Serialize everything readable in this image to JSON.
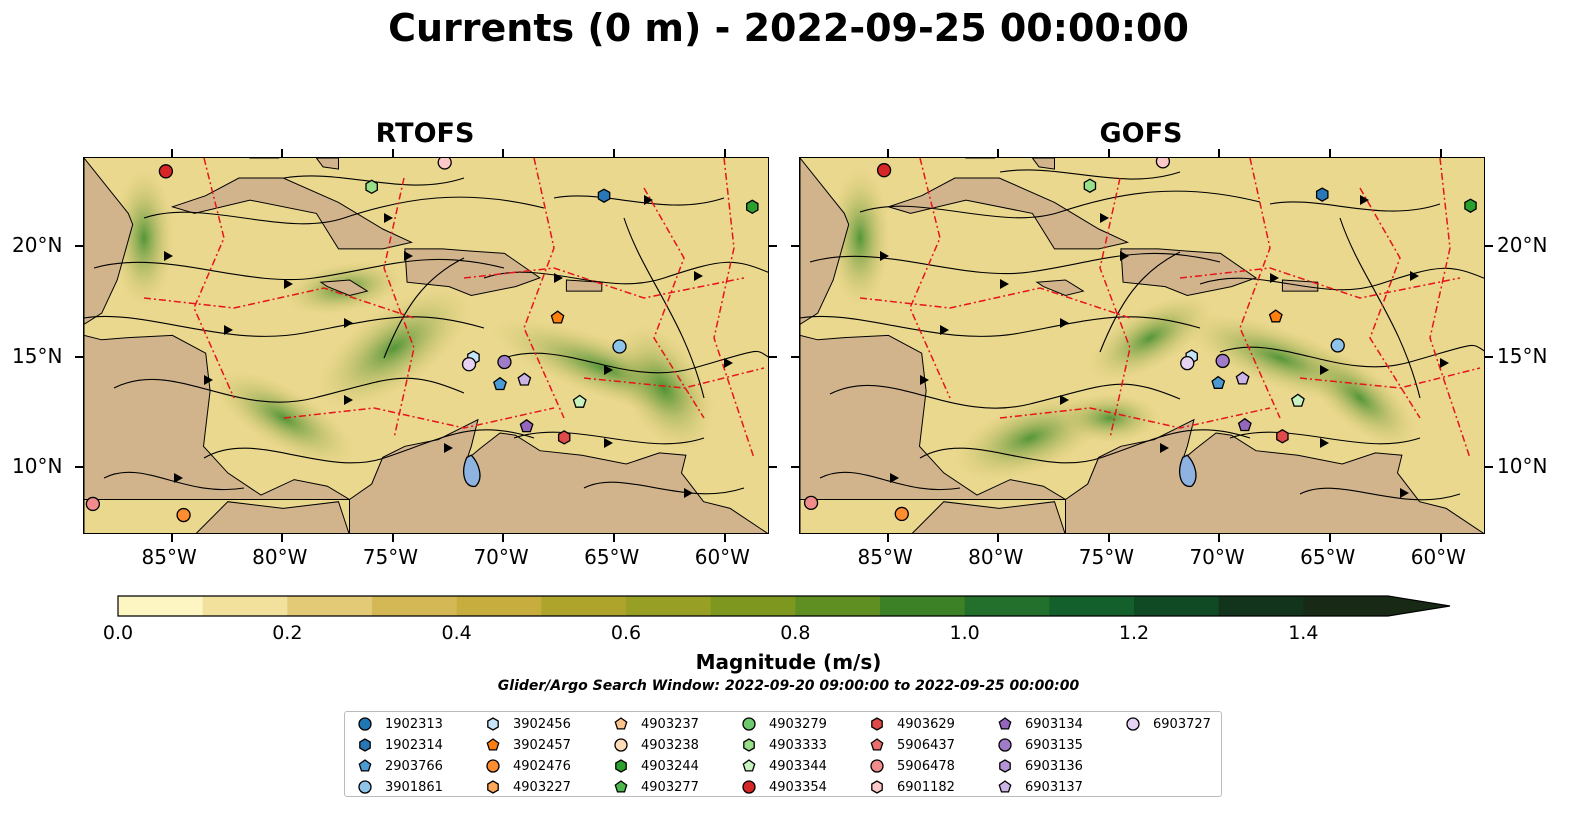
{
  "title": "Currents (0 m) - 2022-09-25 00:00:00",
  "panels": [
    {
      "title": "RTOFS"
    },
    {
      "title": "GOFS"
    }
  ],
  "axes": {
    "lon_labels": [
      "85°W",
      "80°W",
      "75°W",
      "70°W",
      "65°W",
      "60°W"
    ],
    "lon_values": [
      -85,
      -80,
      -75,
      -70,
      -65,
      -60
    ],
    "lat_labels": [
      "20°N",
      "15°N",
      "10°N"
    ],
    "lat_values": [
      20,
      15,
      10
    ],
    "lon_range": [
      -89,
      -58
    ],
    "lat_range": [
      7,
      24
    ]
  },
  "colorbar": {
    "label": "Magnitude (m/s)",
    "tick_labels": [
      "0.0",
      "0.2",
      "0.4",
      "0.6",
      "0.8",
      "1.0",
      "1.2",
      "1.4"
    ],
    "tick_values": [
      0,
      0.2,
      0.4,
      0.6,
      0.8,
      1.0,
      1.2,
      1.4
    ],
    "range": [
      0,
      1.5
    ],
    "extend": "max",
    "colors": [
      "#fdf6c3",
      "#f1e19c",
      "#e2ca76",
      "#d4b855",
      "#c6ad3e",
      "#aea42c",
      "#97a025",
      "#7e971f",
      "#5f8f22",
      "#3d8126",
      "#23702c",
      "#14602c",
      "#0f4a24",
      "#12341c",
      "#182a16"
    ]
  },
  "search_window": "Glider/Argo Search Window: 2022-09-20 09:00:00 to 2022-09-25 00:00:00",
  "legend": [
    {
      "id": "1902313",
      "marker": "circle",
      "color": "#1f77b4"
    },
    {
      "id": "1902314",
      "marker": "hexagon",
      "color": "#2878b8"
    },
    {
      "id": "2903766",
      "marker": "pentagon",
      "color": "#4a9ad6"
    },
    {
      "id": "3901861",
      "marker": "circle",
      "color": "#8ec3ea"
    },
    {
      "id": "3902456",
      "marker": "hexagon",
      "color": "#c6e4f7"
    },
    {
      "id": "3902457",
      "marker": "pentagon",
      "color": "#ff7f0e"
    },
    {
      "id": "4902476",
      "marker": "circle",
      "color": "#ff8c2e"
    },
    {
      "id": "4903227",
      "marker": "hexagon",
      "color": "#ffa85a"
    },
    {
      "id": "4903237",
      "marker": "pentagon",
      "color": "#ffc48d"
    },
    {
      "id": "4903238",
      "marker": "circle",
      "color": "#ffdbb8"
    },
    {
      "id": "4903244",
      "marker": "hexagon",
      "color": "#2ca02c"
    },
    {
      "id": "4903277",
      "marker": "pentagon",
      "color": "#4cb84c"
    },
    {
      "id": "4903279",
      "marker": "circle",
      "color": "#6fca6f"
    },
    {
      "id": "4903333",
      "marker": "hexagon",
      "color": "#98df8a"
    },
    {
      "id": "4903344",
      "marker": "pentagon",
      "color": "#c8f2c0"
    },
    {
      "id": "4903354",
      "marker": "circle",
      "color": "#d62728"
    },
    {
      "id": "4903629",
      "marker": "hexagon",
      "color": "#e04a4a"
    },
    {
      "id": "5906437",
      "marker": "pentagon",
      "color": "#ea6e6e"
    },
    {
      "id": "5906478",
      "marker": "circle",
      "color": "#f08c8c"
    },
    {
      "id": "6901182",
      "marker": "hexagon",
      "color": "#fcc8c8"
    },
    {
      "id": "6903134",
      "marker": "pentagon",
      "color": "#9467bd"
    },
    {
      "id": "6903135",
      "marker": "circle",
      "color": "#a07cc8"
    },
    {
      "id": "6903136",
      "marker": "hexagon",
      "color": "#b494d6"
    },
    {
      "id": "6903137",
      "marker": "pentagon",
      "color": "#cdb4e6"
    },
    {
      "id": "6903727",
      "marker": "circle",
      "color": "#e6d2f2"
    }
  ],
  "floats": [
    {
      "lon": -85.3,
      "lat": 23.4,
      "marker": "circle",
      "color": "#d62728"
    },
    {
      "lon": -72.7,
      "lat": 23.8,
      "marker": "circle",
      "color": "#fcc8c8"
    },
    {
      "lon": -76.0,
      "lat": 22.7,
      "marker": "hexagon",
      "color": "#98df8a"
    },
    {
      "lon": -65.5,
      "lat": 22.3,
      "marker": "hexagon",
      "color": "#2878b8"
    },
    {
      "lon": -58.8,
      "lat": 21.8,
      "marker": "hexagon",
      "color": "#2ca02c"
    },
    {
      "lon": -67.6,
      "lat": 16.8,
      "marker": "pentagon",
      "color": "#ff7f0e"
    },
    {
      "lon": -64.8,
      "lat": 15.5,
      "marker": "circle",
      "color": "#8ec3ea"
    },
    {
      "lon": -71.4,
      "lat": 15.0,
      "marker": "hexagon",
      "color": "#c6e4f7"
    },
    {
      "lon": -71.6,
      "lat": 14.7,
      "marker": "circle",
      "color": "#e6d2f2"
    },
    {
      "lon": -70.0,
      "lat": 14.8,
      "marker": "circle",
      "color": "#a07cc8"
    },
    {
      "lon": -69.1,
      "lat": 14.0,
      "marker": "pentagon",
      "color": "#cdb4e6"
    },
    {
      "lon": -70.2,
      "lat": 13.8,
      "marker": "pentagon",
      "color": "#4a9ad6"
    },
    {
      "lon": -66.6,
      "lat": 13.0,
      "marker": "pentagon",
      "color": "#c8f2c0"
    },
    {
      "lon": -69.0,
      "lat": 11.9,
      "marker": "pentagon",
      "color": "#9467bd"
    },
    {
      "lon": -67.3,
      "lat": 11.4,
      "marker": "hexagon",
      "color": "#e04a4a"
    },
    {
      "lon": -88.6,
      "lat": 8.4,
      "marker": "circle",
      "color": "#f08c8c"
    },
    {
      "lon": -84.5,
      "lat": 7.9,
      "marker": "circle",
      "color": "#ff8c2e"
    }
  ]
}
